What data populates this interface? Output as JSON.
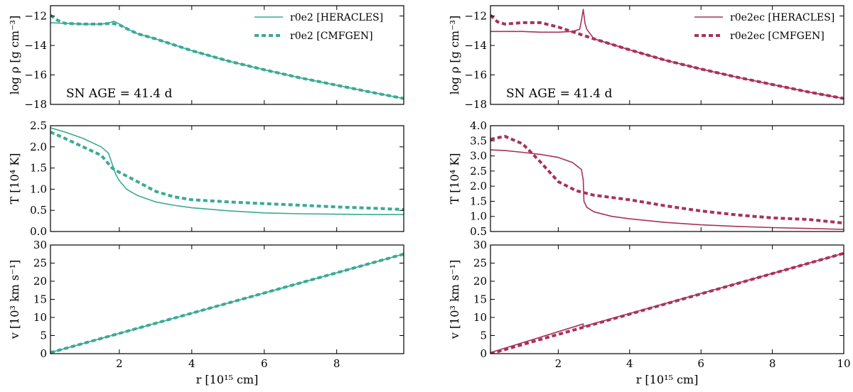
{
  "colors": {
    "teal": "#3aaa94",
    "crimson": "#a8325a"
  },
  "chart_data": [
    {
      "type": "line",
      "id": "left-density",
      "ylabel": "log ρ [g cm⁻³]",
      "xlabel": "",
      "xlim": [
        0.1,
        9.85
      ],
      "ylim": [
        -18,
        -11.3
      ],
      "xticks": [
        2,
        4,
        6,
        8
      ],
      "xtick_labels": [
        "",
        "",
        "",
        ""
      ],
      "yticks": [
        -18,
        -16,
        -14,
        -12
      ],
      "ytick_labels": [
        "−18",
        "−16",
        "−14",
        "−12"
      ],
      "annotation": "SN AGE = 41.4 d",
      "legend": {
        "placement": "top-right",
        "entries": [
          "r0e2 [HERACLES]",
          "r0e2 [CMFGEN]"
        ]
      },
      "series": [
        {
          "name": "r0e2 [HERACLES]",
          "style": "solid",
          "color": "#3aaa94",
          "x": [
            0.1,
            0.5,
            1.0,
            1.5,
            1.75,
            1.85,
            2.0,
            2.2,
            2.5,
            3.0,
            4.0,
            5.0,
            6.0,
            7.0,
            8.0,
            9.0,
            9.85
          ],
          "y": [
            -12.45,
            -12.5,
            -12.55,
            -12.55,
            -12.45,
            -12.35,
            -12.55,
            -12.85,
            -13.2,
            -13.55,
            -14.35,
            -15.05,
            -15.65,
            -16.2,
            -16.7,
            -17.2,
            -17.6
          ]
        },
        {
          "name": "r0e2 [CMFGEN]",
          "style": "dashed",
          "color": "#3aaa94",
          "x": [
            0.1,
            0.3,
            0.5,
            1.0,
            1.5,
            1.8,
            2.0,
            2.2,
            2.5,
            3.0,
            4.0,
            5.0,
            6.0,
            7.0,
            8.0,
            9.0,
            9.85
          ],
          "y": [
            -11.95,
            -12.3,
            -12.5,
            -12.55,
            -12.55,
            -12.5,
            -12.6,
            -12.85,
            -13.2,
            -13.55,
            -14.35,
            -15.05,
            -15.65,
            -16.2,
            -16.7,
            -17.2,
            -17.6
          ]
        }
      ]
    },
    {
      "type": "line",
      "id": "left-temperature",
      "ylabel": "T [10⁴ K]",
      "xlabel": "",
      "xlim": [
        0.1,
        9.85
      ],
      "ylim": [
        0,
        2.5
      ],
      "xticks": [
        2,
        4,
        6,
        8
      ],
      "xtick_labels": [
        "",
        "",
        "",
        ""
      ],
      "yticks": [
        0,
        0.5,
        1.0,
        1.5,
        2.0,
        2.5
      ],
      "ytick_labels": [
        "0.0",
        "0.5",
        "1.0",
        "1.5",
        "2.0",
        "2.5"
      ],
      "series": [
        {
          "name": "r0e2 [HERACLES]",
          "style": "solid",
          "color": "#3aaa94",
          "x": [
            0.1,
            0.5,
            1.0,
            1.5,
            1.7,
            1.8,
            1.9,
            2.0,
            2.2,
            2.5,
            3.0,
            3.5,
            4.0,
            5.0,
            6.0,
            7.0,
            8.0,
            9.0,
            9.85
          ],
          "y": [
            2.45,
            2.35,
            2.2,
            2.0,
            1.85,
            1.6,
            1.35,
            1.2,
            1.0,
            0.85,
            0.7,
            0.62,
            0.56,
            0.49,
            0.44,
            0.42,
            0.41,
            0.4,
            0.4
          ]
        },
        {
          "name": "r0e2 [CMFGEN]",
          "style": "dashed",
          "color": "#3aaa94",
          "x": [
            0.1,
            0.5,
            1.0,
            1.5,
            1.8,
            2.0,
            2.5,
            3.0,
            3.5,
            4.0,
            5.0,
            6.0,
            7.0,
            8.0,
            9.0,
            9.85
          ],
          "y": [
            2.35,
            2.2,
            2.0,
            1.8,
            1.5,
            1.4,
            1.18,
            0.95,
            0.82,
            0.75,
            0.7,
            0.66,
            0.62,
            0.58,
            0.55,
            0.52
          ]
        }
      ]
    },
    {
      "type": "line",
      "id": "left-velocity",
      "ylabel": "v [10³ km s⁻¹]",
      "xlabel": "r [10¹⁵ cm]",
      "xlim": [
        0.1,
        9.85
      ],
      "ylim": [
        0,
        30
      ],
      "xticks": [
        2,
        4,
        6,
        8
      ],
      "xtick_labels": [
        "2",
        "4",
        "6",
        "8"
      ],
      "yticks": [
        0,
        5,
        10,
        15,
        20,
        25,
        30
      ],
      "ytick_labels": [
        "0",
        "5",
        "10",
        "15",
        "20",
        "25",
        "30"
      ],
      "series": [
        {
          "name": "r0e2 [HERACLES]",
          "style": "solid",
          "color": "#3aaa94",
          "x": [
            0.1,
            9.85
          ],
          "y": [
            0.3,
            27.5
          ]
        },
        {
          "name": "r0e2 [CMFGEN]",
          "style": "dashed",
          "color": "#3aaa94",
          "x": [
            0.1,
            9.85
          ],
          "y": [
            0.3,
            27.5
          ]
        }
      ]
    },
    {
      "type": "line",
      "id": "right-density",
      "ylabel": "log ρ [g cm⁻³]",
      "xlabel": "",
      "xlim": [
        0.1,
        10
      ],
      "ylim": [
        -18,
        -11.3
      ],
      "xticks": [
        2,
        4,
        6,
        8,
        10
      ],
      "xtick_labels": [
        "",
        "",
        "",
        "",
        ""
      ],
      "yticks": [
        -18,
        -16,
        -14,
        -12
      ],
      "ytick_labels": [
        "−18",
        "−16",
        "−14",
        "−12"
      ],
      "annotation": "SN AGE = 41.4 d",
      "legend": {
        "placement": "top-right",
        "entries": [
          "r0e2ec [HERACLES]",
          "r0e2ec [CMFGEN]"
        ]
      },
      "series": [
        {
          "name": "r0e2ec [HERACLES]",
          "style": "solid",
          "color": "#a8325a",
          "x": [
            0.1,
            0.5,
            1.0,
            1.5,
            2.0,
            2.4,
            2.6,
            2.65,
            2.7,
            2.75,
            2.8,
            3.0,
            4.0,
            5.0,
            6.0,
            7.0,
            8.0,
            9.0,
            10.0
          ],
          "y": [
            -13.05,
            -13.05,
            -13.05,
            -13.1,
            -13.1,
            -13.05,
            -12.9,
            -12.3,
            -11.55,
            -12.5,
            -12.9,
            -13.55,
            -14.3,
            -15.0,
            -15.6,
            -16.15,
            -16.65,
            -17.15,
            -17.6
          ]
        },
        {
          "name": "r0e2ec [CMFGEN]",
          "style": "dashed",
          "color": "#a8325a",
          "x": [
            0.1,
            0.3,
            0.5,
            1.0,
            1.5,
            2.0,
            2.5,
            3.0,
            4.0,
            5.0,
            6.0,
            7.0,
            8.0,
            9.0,
            10.0
          ],
          "y": [
            -11.95,
            -12.4,
            -12.55,
            -12.45,
            -12.45,
            -12.75,
            -13.15,
            -13.55,
            -14.3,
            -15.0,
            -15.6,
            -16.15,
            -16.65,
            -17.15,
            -17.6
          ]
        }
      ]
    },
    {
      "type": "line",
      "id": "right-temperature",
      "ylabel": "T [10⁴ K]",
      "xlabel": "",
      "xlim": [
        0.1,
        10
      ],
      "ylim": [
        0.5,
        4.0
      ],
      "xticks": [
        2,
        4,
        6,
        8,
        10
      ],
      "xtick_labels": [
        "",
        "",
        "",
        "",
        ""
      ],
      "yticks": [
        0.5,
        1.0,
        1.5,
        2.0,
        2.5,
        3.0,
        3.5,
        4.0
      ],
      "ytick_labels": [
        "0.5",
        "1.0",
        "1.5",
        "2.0",
        "2.5",
        "3.0",
        "3.5",
        "4.0"
      ],
      "series": [
        {
          "name": "r0e2ec [HERACLES]",
          "style": "solid",
          "color": "#a8325a",
          "x": [
            0.1,
            0.5,
            1.0,
            1.5,
            2.0,
            2.4,
            2.65,
            2.7,
            2.72,
            2.8,
            3.0,
            3.5,
            4.0,
            5.0,
            6.0,
            7.0,
            8.0,
            9.0,
            10.0
          ],
          "y": [
            3.2,
            3.18,
            3.12,
            3.05,
            2.95,
            2.78,
            2.55,
            2.2,
            1.5,
            1.3,
            1.15,
            1.0,
            0.92,
            0.8,
            0.72,
            0.67,
            0.63,
            0.6,
            0.57
          ]
        },
        {
          "name": "r0e2ec [CMFGEN]",
          "style": "dashed",
          "color": "#a8325a",
          "x": [
            0.1,
            0.5,
            1.0,
            1.5,
            2.0,
            2.5,
            3.0,
            4.0,
            5.0,
            6.0,
            7.0,
            8.0,
            9.0,
            10.0
          ],
          "y": [
            3.55,
            3.65,
            3.4,
            2.8,
            2.15,
            1.85,
            1.7,
            1.55,
            1.35,
            1.18,
            1.05,
            0.95,
            0.9,
            0.78
          ]
        }
      ]
    },
    {
      "type": "line",
      "id": "right-velocity",
      "ylabel": "v [10³ km s⁻¹]",
      "xlabel": "r [10¹⁵ cm]",
      "xlim": [
        0.1,
        10
      ],
      "ylim": [
        0,
        30
      ],
      "xticks": [
        2,
        4,
        6,
        8,
        10
      ],
      "xtick_labels": [
        "2",
        "4",
        "6",
        "8",
        "10"
      ],
      "yticks": [
        0,
        5,
        10,
        15,
        20,
        25,
        30
      ],
      "ytick_labels": [
        "0",
        "5",
        "10",
        "15",
        "20",
        "25",
        "30"
      ],
      "series": [
        {
          "name": "r0e2ec [HERACLES]",
          "style": "solid",
          "color": "#a8325a",
          "x": [
            0.1,
            2.7,
            2.7,
            10.0
          ],
          "y": [
            0.3,
            8.2,
            7.5,
            27.7
          ]
        },
        {
          "name": "r0e2ec [CMFGEN]",
          "style": "dashed",
          "color": "#a8325a",
          "x": [
            0.1,
            10.0
          ],
          "y": [
            0.0,
            27.7
          ]
        }
      ]
    }
  ]
}
